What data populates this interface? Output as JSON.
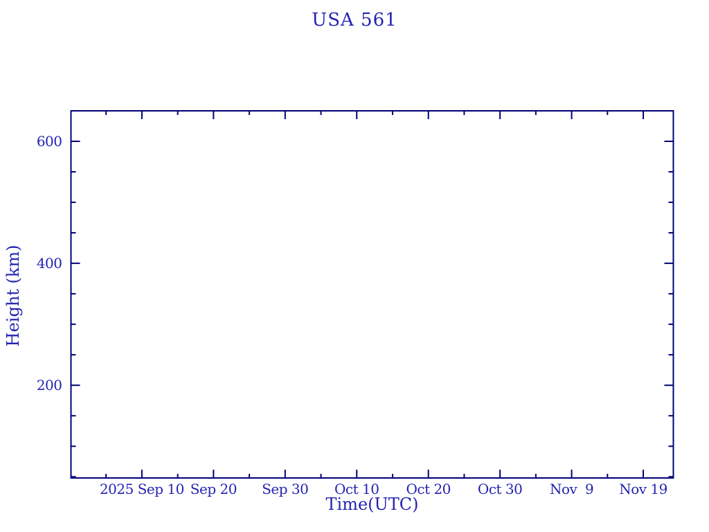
{
  "colors": {
    "text": "#2323b2",
    "line": "#000078",
    "background": "#ffffff"
  },
  "chart_data": {
    "type": "line",
    "title": "USA 561",
    "xlabel": "Time(UTC)",
    "ylabel": "Height (km)",
    "series": [],
    "grid": false,
    "legend": null,
    "x_axis": {
      "unit": "date (UTC), days relative to 2025 Sep 10",
      "range_days": [
        -9.9,
        74.2
      ],
      "major_ticks": [
        {
          "day": 0,
          "label": "2025 Sep 10"
        },
        {
          "day": 10,
          "label": "Sep 20"
        },
        {
          "day": 20,
          "label": "Sep 30"
        },
        {
          "day": 30,
          "label": "Oct 10"
        },
        {
          "day": 40,
          "label": "Oct 20"
        },
        {
          "day": 50,
          "label": "Oct 30"
        },
        {
          "day": 60,
          "label": "Nov  9"
        },
        {
          "day": 70,
          "label": "Nov 19"
        }
      ],
      "minor_tick_days": [
        -5,
        5,
        15,
        25,
        35,
        45,
        55,
        65
      ]
    },
    "y_axis": {
      "unit": "km",
      "range_km": [
        48,
        650
      ],
      "major_ticks": [
        {
          "value": 200,
          "label": "200"
        },
        {
          "value": 400,
          "label": "400"
        },
        {
          "value": 600,
          "label": "600"
        }
      ],
      "minor_tick_values": [
        50,
        100,
        150,
        250,
        300,
        350,
        450,
        500,
        550
      ]
    }
  }
}
